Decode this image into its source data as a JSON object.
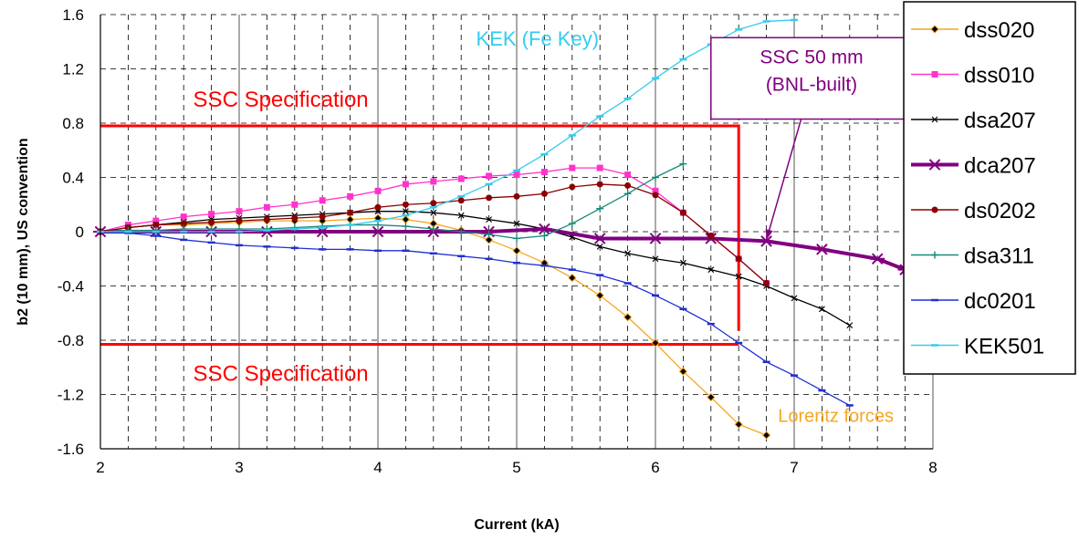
{
  "chart_data": {
    "type": "line",
    "xlabel": "Current (kA)",
    "ylabel": "b2 (10 mm), US convention",
    "xlim": [
      2,
      8
    ],
    "ylim": [
      -1.6,
      1.6
    ],
    "x_ticks": [
      "2",
      "3",
      "4",
      "5",
      "6",
      "7",
      "8"
    ],
    "y_ticks": [
      "1.6",
      "1.2",
      "0.8",
      "0.4",
      "0",
      "-0.4",
      "-0.8",
      "-1.2",
      "-1.6"
    ],
    "grid": true,
    "legend_position": "right",
    "series": [
      {
        "name": "dss020",
        "color": "#f5a623",
        "marker": "diamond",
        "x": [
          2.0,
          2.2,
          2.4,
          2.6,
          2.8,
          3.0,
          3.2,
          3.4,
          3.6,
          3.8,
          4.0,
          4.2,
          4.4,
          4.6,
          4.8,
          5.0,
          5.2,
          5.4,
          5.6,
          5.8,
          6.0,
          6.2,
          6.4,
          6.6,
          6.8
        ],
        "y": [
          0.0,
          0.03,
          0.05,
          0.05,
          0.06,
          0.07,
          0.08,
          0.08,
          0.08,
          0.09,
          0.1,
          0.09,
          0.06,
          0.01,
          -0.06,
          -0.14,
          -0.23,
          -0.34,
          -0.47,
          -0.63,
          -0.82,
          -1.03,
          -1.22,
          -1.42,
          -1.5
        ]
      },
      {
        "name": "dss010",
        "color": "#ff33cc",
        "marker": "square",
        "x": [
          2.0,
          2.2,
          2.4,
          2.6,
          2.8,
          3.0,
          3.2,
          3.4,
          3.6,
          3.8,
          4.0,
          4.2,
          4.4,
          4.6,
          4.8,
          5.0,
          5.2,
          5.4,
          5.6,
          5.8,
          6.0,
          6.2,
          6.4,
          6.6,
          6.8
        ],
        "y": [
          0.0,
          0.05,
          0.08,
          0.11,
          0.13,
          0.15,
          0.18,
          0.2,
          0.23,
          0.26,
          0.3,
          0.35,
          0.37,
          0.39,
          0.41,
          0.42,
          0.44,
          0.47,
          0.47,
          0.42,
          0.3,
          0.14,
          -0.03,
          -0.2,
          -0.38
        ]
      },
      {
        "name": "dsa207",
        "color": "#000000",
        "marker": "x",
        "x": [
          2.0,
          2.2,
          2.4,
          2.6,
          2.8,
          3.0,
          3.2,
          3.4,
          3.6,
          3.8,
          4.0,
          4.2,
          4.4,
          4.6,
          4.8,
          5.0,
          5.2,
          5.4,
          5.6,
          5.8,
          6.0,
          6.2,
          6.4,
          6.6,
          6.8,
          7.0,
          7.2,
          7.4
        ],
        "y": [
          0.0,
          0.03,
          0.05,
          0.07,
          0.09,
          0.1,
          0.11,
          0.12,
          0.13,
          0.14,
          0.15,
          0.15,
          0.14,
          0.12,
          0.09,
          0.06,
          0.02,
          -0.04,
          -0.11,
          -0.16,
          -0.2,
          -0.23,
          -0.28,
          -0.33,
          -0.4,
          -0.49,
          -0.57,
          -0.69
        ]
      },
      {
        "name": "dca207",
        "color": "#800080",
        "marker": "star",
        "x": [
          2.0,
          2.4,
          2.8,
          3.2,
          3.6,
          4.0,
          4.4,
          4.8,
          5.2,
          5.6,
          6.0,
          6.4,
          6.8,
          7.2,
          7.6,
          7.8
        ],
        "y": [
          0.0,
          0.0,
          0.0,
          0.0,
          0.0,
          0.0,
          0.0,
          0.0,
          0.02,
          -0.05,
          -0.05,
          -0.05,
          -0.07,
          -0.13,
          -0.2,
          -0.28
        ]
      },
      {
        "name": "ds0202",
        "color": "#8b0000",
        "marker": "circle",
        "x": [
          2.0,
          2.2,
          2.4,
          2.6,
          2.8,
          3.0,
          3.2,
          3.4,
          3.6,
          3.8,
          4.0,
          4.2,
          4.4,
          4.6,
          4.8,
          5.0,
          5.2,
          5.4,
          5.6,
          5.8,
          6.0,
          6.2,
          6.4,
          6.6,
          6.8
        ],
        "y": [
          0.0,
          0.03,
          0.05,
          0.06,
          0.07,
          0.08,
          0.09,
          0.1,
          0.11,
          0.14,
          0.18,
          0.2,
          0.21,
          0.23,
          0.25,
          0.26,
          0.28,
          0.33,
          0.35,
          0.34,
          0.27,
          0.14,
          -0.03,
          -0.2,
          -0.38
        ]
      },
      {
        "name": "dsa311",
        "color": "#1a8a7a",
        "marker": "plus",
        "x": [
          2.0,
          2.2,
          2.4,
          2.6,
          2.8,
          3.0,
          3.2,
          3.4,
          3.6,
          3.8,
          4.0,
          4.2,
          4.4,
          4.6,
          4.8,
          5.0,
          5.2,
          5.4,
          5.6,
          5.8,
          6.0,
          6.2
        ],
        "y": [
          0.0,
          0.01,
          0.01,
          0.02,
          0.02,
          0.02,
          0.02,
          0.03,
          0.04,
          0.05,
          0.05,
          0.04,
          0.02,
          0.0,
          -0.02,
          -0.05,
          -0.03,
          0.06,
          0.17,
          0.28,
          0.4,
          0.5
        ]
      },
      {
        "name": "dc0201",
        "color": "#1f2fd6",
        "marker": "dash",
        "x": [
          2.0,
          2.2,
          2.4,
          2.6,
          2.8,
          3.0,
          3.2,
          3.4,
          3.6,
          3.8,
          4.0,
          4.2,
          4.4,
          4.6,
          4.8,
          5.0,
          5.2,
          5.4,
          5.6,
          5.8,
          6.0,
          6.2,
          6.4,
          6.6,
          6.8,
          7.0,
          7.2,
          7.4
        ],
        "y": [
          0.0,
          -0.01,
          -0.03,
          -0.06,
          -0.08,
          -0.1,
          -0.11,
          -0.12,
          -0.13,
          -0.13,
          -0.14,
          -0.14,
          -0.16,
          -0.18,
          -0.2,
          -0.23,
          -0.25,
          -0.28,
          -0.32,
          -0.38,
          -0.47,
          -0.57,
          -0.68,
          -0.82,
          -0.96,
          -1.06,
          -1.17,
          -1.28
        ]
      },
      {
        "name": "KEK501",
        "color": "#33ccee",
        "marker": "dash",
        "x": [
          2.0,
          2.2,
          2.4,
          2.6,
          2.8,
          3.0,
          3.2,
          3.4,
          3.6,
          3.8,
          4.0,
          4.2,
          4.4,
          4.6,
          4.8,
          5.0,
          5.2,
          5.4,
          5.6,
          5.8,
          6.0,
          6.2,
          6.4,
          6.6,
          6.8,
          7.0
        ],
        "y": [
          0.0,
          0.0,
          0.0,
          0.0,
          0.0,
          0.0,
          0.01,
          0.02,
          0.03,
          0.05,
          0.08,
          0.12,
          0.18,
          0.26,
          0.35,
          0.45,
          0.57,
          0.71,
          0.85,
          0.98,
          1.13,
          1.27,
          1.38,
          1.49,
          1.55,
          1.56
        ]
      }
    ],
    "spec_box": {
      "x_min": 2.0,
      "x_max": 6.6,
      "y_min": -0.83,
      "y_max": 0.78,
      "color": "#ff0000"
    },
    "annotations": {
      "spec_top": {
        "text": "SSC Specification",
        "x": 3.3,
        "y": 0.92,
        "color": "#ff0000"
      },
      "spec_bottom": {
        "text": "SSC Specification",
        "x": 3.3,
        "y": -1.1,
        "color": "#ff0000"
      },
      "kek": {
        "text": "KEK (Fe Key)",
        "x": 5.15,
        "y": 1.37,
        "color": "#33ccee"
      },
      "lorentz": {
        "text": "Lorentz forces",
        "x": 7.3,
        "y": -1.4,
        "color": "#f5a623"
      },
      "ssc50_line1": "SSC 50 mm",
      "ssc50_line2": "(BNL-built)",
      "ssc50_color": "#800080",
      "ssc50_box": {
        "x_min": 6.4,
        "x_max": 7.85,
        "y_min": 0.83,
        "y_max": 1.43
      },
      "ssc50_arrow": {
        "from": [
          7.05,
          0.83
        ],
        "to": [
          6.8,
          -0.06
        ]
      }
    }
  }
}
